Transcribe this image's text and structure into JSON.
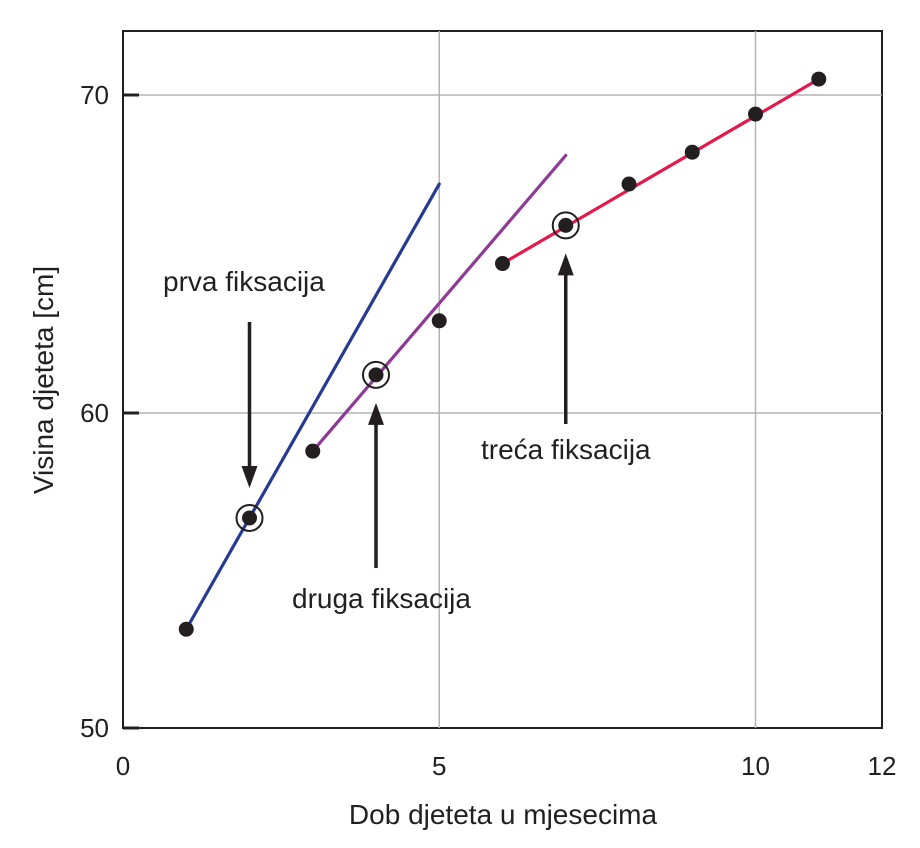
{
  "chart_data": {
    "type": "scatter",
    "xlabel": "Dob djeteta u mjesecima",
    "ylabel": "Visina djeteta [cm]",
    "xlim": [
      0,
      12
    ],
    "ylim": [
      50,
      72
    ],
    "xticks": [
      0,
      5,
      10,
      12
    ],
    "yticks": [
      50,
      60,
      70
    ],
    "grid": true,
    "points": [
      {
        "x": 1,
        "y": 53.2
      },
      {
        "x": 2,
        "y": 56.7,
        "circled": true
      },
      {
        "x": 3,
        "y": 58.8
      },
      {
        "x": 4,
        "y": 61.2,
        "circled": true
      },
      {
        "x": 5,
        "y": 62.9
      },
      {
        "x": 6,
        "y": 64.7
      },
      {
        "x": 7,
        "y": 65.9,
        "circled": true
      },
      {
        "x": 8,
        "y": 67.2
      },
      {
        "x": 9,
        "y": 68.2
      },
      {
        "x": 10,
        "y": 69.4
      },
      {
        "x": 11,
        "y": 70.5
      }
    ],
    "fit_lines": [
      {
        "color": "#253a93",
        "x": [
          1,
          5
        ],
        "y": [
          53.2,
          67.2
        ]
      },
      {
        "color": "#8e3a96",
        "x": [
          3,
          7
        ],
        "y": [
          58.8,
          68.1
        ]
      },
      {
        "color": "#e5184c",
        "x": [
          6,
          11
        ],
        "y": [
          64.7,
          70.5
        ]
      }
    ],
    "annotations": [
      {
        "text": "prva fiksacija",
        "target_x": 2,
        "arrow": "down"
      },
      {
        "text": "druga fiksacija",
        "target_x": 4,
        "arrow": "up"
      },
      {
        "text": "treća fiksacija",
        "target_x": 7,
        "arrow": "up"
      }
    ]
  }
}
